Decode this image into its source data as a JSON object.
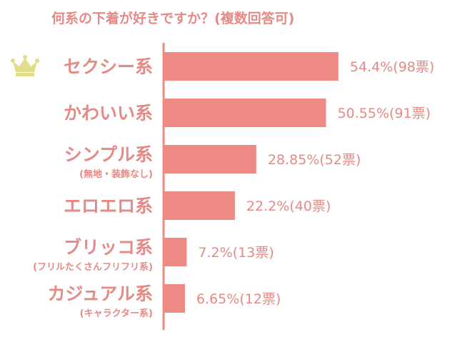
{
  "chart_data": {
    "type": "bar",
    "orientation": "horizontal",
    "title": "何系の下着が好きですか？(複数回答可)",
    "categories": [
      {
        "label": "セクシー系",
        "sub": "",
        "icon": "crown-icon"
      },
      {
        "label": "かわいい系",
        "sub": ""
      },
      {
        "label": "シンプル系",
        "sub": "(無地・装飾なし)"
      },
      {
        "label": "エロエロ系",
        "sub": ""
      },
      {
        "label": "ブリッコ系",
        "sub": "(フリルたくさんフリフリ系)"
      },
      {
        "label": "カジュアル系",
        "sub": "(キャラクター系)"
      }
    ],
    "values": [
      54.4,
      50.55,
      28.85,
      22.2,
      7.2,
      6.65
    ],
    "votes": [
      98,
      91,
      52,
      40,
      13,
      12
    ],
    "value_labels": [
      "54.4%(98票)",
      "50.55%(91票)",
      "28.85%(52票)",
      "22.2%(40票)",
      "7.2%(13票)",
      "6.65%(12票)"
    ],
    "xlim": [
      0,
      100
    ],
    "grid": false,
    "legend": "none",
    "colors": {
      "bar": "#ee8a84",
      "text": "#e58a86",
      "axis": "#ee8a84",
      "crown": "#e2dd8a"
    }
  }
}
